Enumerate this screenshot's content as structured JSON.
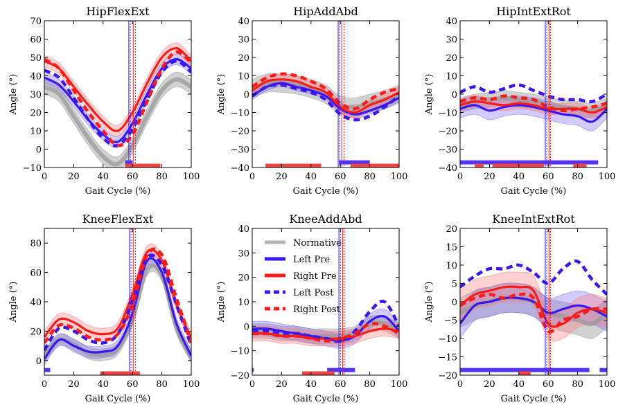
{
  "colors": {
    "normative": "#999999",
    "left": "#3a16f2",
    "right": "#ff1a1a",
    "left_band": "#7a6ef5",
    "right_band": "#ff7a7a",
    "left_bar": "#5533ee",
    "right_bar": "#ee4444"
  },
  "legend": {
    "normative": "Normative",
    "left_pre": "Left Pre",
    "right_pre": "Right Pre",
    "left_post": "Left Post",
    "right_post": "Right Post"
  },
  "chart_data": [
    {
      "type": "line",
      "title": "HipFlexExt",
      "xlabel": "Gait Cycle (%)",
      "ylabel": "Angle (°)",
      "xlim": [
        0,
        100
      ],
      "ylim": [
        -10,
        70
      ],
      "xticks": [
        0,
        20,
        40,
        60,
        80,
        100
      ],
      "yticks": [
        -10,
        0,
        10,
        20,
        30,
        40,
        50,
        60,
        70
      ],
      "x": [
        0,
        10,
        20,
        30,
        40,
        50,
        60,
        70,
        80,
        90,
        100
      ],
      "series": [
        {
          "name": "Normative",
          "values": [
            34,
            30,
            18,
            6,
            -4,
            -8,
            2,
            18,
            32,
            38,
            34
          ],
          "band": 4
        },
        {
          "name": "Left Pre",
          "values": [
            39,
            35,
            26,
            16,
            8,
            4,
            14,
            30,
            44,
            49,
            44
          ],
          "band": 3
        },
        {
          "name": "Right Pre",
          "values": [
            48,
            44,
            34,
            24,
            15,
            10,
            20,
            36,
            50,
            55,
            48
          ],
          "band": 3
        },
        {
          "name": "Left Post",
          "values": [
            43,
            39,
            28,
            16,
            6,
            2,
            11,
            27,
            42,
            48,
            42
          ]
        },
        {
          "name": "Right Post",
          "values": [
            49,
            44,
            32,
            20,
            10,
            2,
            8,
            26,
            44,
            53,
            47
          ]
        }
      ],
      "toe_off": {
        "left_pre": 57.5,
        "right_pre": 60.5,
        "left_post": 58.5,
        "right_post": 62
      },
      "sig_bars": [
        {
          "side": "left",
          "start": 55,
          "end": 60
        },
        {
          "side": "right",
          "start": 55,
          "end": 79
        }
      ]
    },
    {
      "type": "line",
      "title": "HipAddAbd",
      "xlabel": "Gait Cycle (%)",
      "ylabel": "Angle (°)",
      "xlim": [
        0,
        100
      ],
      "ylim": [
        -40,
        40
      ],
      "xticks": [
        0,
        20,
        40,
        60,
        80,
        100
      ],
      "yticks": [
        -40,
        -30,
        -20,
        -10,
        0,
        10,
        20,
        30,
        40
      ],
      "x": [
        0,
        10,
        20,
        30,
        40,
        50,
        60,
        70,
        80,
        90,
        100
      ],
      "series": [
        {
          "name": "Normative",
          "values": [
            3,
            6,
            6,
            5,
            3,
            0,
            -6,
            -7,
            -5,
            -3,
            0
          ],
          "band": 5
        },
        {
          "name": "Left Pre",
          "values": [
            -1,
            4,
            6,
            4,
            2,
            -1,
            -8,
            -11,
            -9,
            -6,
            -2
          ],
          "band": 2
        },
        {
          "name": "Right Pre",
          "values": [
            2,
            7,
            8,
            7,
            4,
            1,
            -7,
            -10,
            -6,
            -3,
            1
          ],
          "band": 3
        },
        {
          "name": "Left Post",
          "values": [
            -1,
            4,
            5,
            3,
            1,
            -3,
            -11,
            -14,
            -12,
            -7,
            -1
          ]
        },
        {
          "name": "Right Post",
          "values": [
            4,
            9,
            11,
            10,
            7,
            3,
            -5,
            -8,
            -3,
            1,
            3
          ]
        }
      ],
      "toe_off": {
        "left_pre": 58.5,
        "right_pre": 61,
        "left_post": 59.5,
        "right_post": 62.5
      },
      "sig_bars": [
        {
          "side": "left",
          "start": 59,
          "end": 80
        },
        {
          "side": "right",
          "start": 9,
          "end": 47
        },
        {
          "side": "right",
          "start": 67,
          "end": 100
        }
      ]
    },
    {
      "type": "line",
      "title": "HipIntExtRot",
      "xlabel": "Gait Cycle (%)",
      "ylabel": "Angle (°)",
      "xlim": [
        0,
        100
      ],
      "ylim": [
        -40,
        40
      ],
      "xticks": [
        0,
        20,
        40,
        60,
        80,
        100
      ],
      "yticks": [
        -40,
        -30,
        -20,
        -10,
        0,
        10,
        20,
        30,
        40
      ],
      "x": [
        0,
        10,
        20,
        30,
        40,
        50,
        60,
        70,
        80,
        90,
        100
      ],
      "series": [
        {
          "name": "Normative",
          "values": [
            -6,
            -4,
            -3,
            -2,
            -3,
            -4,
            -6,
            -7,
            -8,
            -9,
            -6
          ],
          "band": 4
        },
        {
          "name": "Left Pre",
          "values": [
            -8,
            -6,
            -9,
            -7,
            -6,
            -7,
            -9,
            -11,
            -12,
            -15,
            -8
          ],
          "band": 5
        },
        {
          "name": "Right Pre",
          "values": [
            -6,
            -4,
            -5,
            -6,
            -5,
            -6,
            -8,
            -8,
            -8,
            -10,
            -7
          ],
          "band": 3
        },
        {
          "name": "Left Post",
          "values": [
            1,
            4,
            1,
            3,
            5,
            2,
            -1,
            -3,
            -3,
            -4,
            0
          ]
        },
        {
          "name": "Right Post",
          "values": [
            -4,
            -2,
            -3,
            -1,
            -2,
            -3,
            -7,
            -9,
            -8,
            -7,
            -5
          ]
        }
      ],
      "toe_off": {
        "left_pre": 58,
        "right_pre": 60.5,
        "left_post": 59,
        "right_post": 61.5
      },
      "sig_bars": [
        {
          "side": "left",
          "start": 0,
          "end": 94
        },
        {
          "side": "right",
          "start": 10,
          "end": 16
        },
        {
          "side": "right",
          "start": 22,
          "end": 57
        },
        {
          "side": "right",
          "start": 77,
          "end": 86
        }
      ]
    },
    {
      "type": "line",
      "title": "KneeFlexExt",
      "xlabel": "Gait Cycle (%)",
      "ylabel": "Angle (°)",
      "xlim": [
        0,
        100
      ],
      "ylim": [
        -10,
        90
      ],
      "xticks": [
        0,
        20,
        40,
        60,
        80,
        100
      ],
      "yticks": [
        0,
        20,
        40,
        60,
        80
      ],
      "x": [
        0,
        10,
        20,
        30,
        40,
        50,
        60,
        70,
        80,
        90,
        100
      ],
      "series": [
        {
          "name": "Normative",
          "values": [
            3,
            14,
            11,
            5,
            4,
            8,
            28,
            62,
            58,
            22,
            3
          ],
          "band": 4
        },
        {
          "name": "Left Pre",
          "values": [
            1,
            14,
            10,
            6,
            6,
            10,
            32,
            68,
            60,
            25,
            3
          ],
          "band": 4
        },
        {
          "name": "Right Pre",
          "values": [
            16,
            28,
            26,
            20,
            18,
            22,
            45,
            74,
            68,
            38,
            15
          ],
          "band": 4
        },
        {
          "name": "Left Post",
          "values": [
            7,
            22,
            20,
            14,
            12,
            18,
            40,
            70,
            65,
            38,
            10
          ]
        },
        {
          "name": "Right Post",
          "values": [
            12,
            24,
            22,
            16,
            14,
            18,
            38,
            72,
            72,
            42,
            12
          ]
        }
      ],
      "toe_off": {
        "left_pre": 58,
        "right_pre": 60.5,
        "left_post": 59,
        "right_post": 62
      },
      "sig_bars": [
        {
          "side": "left",
          "start": 0,
          "end": 4
        },
        {
          "side": "right",
          "start": 38,
          "end": 65
        }
      ]
    },
    {
      "type": "line",
      "title": "KneeAddAbd",
      "xlabel": "Gait Cycle (%)",
      "ylabel": "Angle (°)",
      "xlim": [
        0,
        100
      ],
      "ylim": [
        -20,
        40
      ],
      "xticks": [
        0,
        20,
        40,
        60,
        80,
        100
      ],
      "yticks": [
        -20,
        -10,
        0,
        10,
        20,
        30,
        40
      ],
      "x": [
        0,
        10,
        20,
        30,
        40,
        50,
        60,
        70,
        80,
        90,
        100
      ],
      "series": [
        {
          "name": "Normative",
          "values": [
            -2,
            -2,
            -3,
            -3,
            -4,
            -4,
            -4,
            -3,
            1,
            1,
            -2
          ],
          "band": 3
        },
        {
          "name": "Left Pre",
          "values": [
            -1,
            -1,
            -2,
            -3,
            -4,
            -5,
            -6,
            -4,
            2,
            4,
            -2
          ],
          "band": 3
        },
        {
          "name": "Right Pre",
          "values": [
            -3,
            -3,
            -4,
            -4,
            -5,
            -5,
            -5,
            -4,
            -2,
            -1,
            -2
          ],
          "band": 3
        },
        {
          "name": "Left Post",
          "values": [
            -2,
            -2,
            -3,
            -3,
            -4,
            -5,
            -6,
            -2,
            6,
            10,
            0
          ]
        },
        {
          "name": "Right Post",
          "values": [
            -3,
            -3,
            -4,
            -4,
            -5,
            -6,
            -5,
            -3,
            1,
            0,
            -3
          ]
        }
      ],
      "toe_off": {
        "left_pre": 59,
        "right_pre": 61.5,
        "left_post": 60,
        "right_post": 62.5
      },
      "sig_bars": [
        {
          "side": "left",
          "start": 0,
          "end": 1
        },
        {
          "side": "left",
          "start": 51,
          "end": 70
        },
        {
          "side": "right",
          "start": 34,
          "end": 56
        }
      ],
      "legend_position": "upper-left"
    },
    {
      "type": "line",
      "title": "KneeIntExtRot",
      "xlabel": "Gait Cycle (%)",
      "ylabel": "Angle (°)",
      "xlim": [
        0,
        100
      ],
      "ylim": [
        -20,
        20
      ],
      "xticks": [
        0,
        20,
        40,
        60,
        80,
        100
      ],
      "yticks": [
        -20,
        -15,
        -10,
        -5,
        0,
        5,
        10,
        15,
        20
      ],
      "x": [
        0,
        10,
        20,
        30,
        40,
        50,
        60,
        70,
        80,
        90,
        100
      ],
      "series": [
        {
          "name": "Normative",
          "values": [
            -3,
            -1,
            0,
            1,
            1,
            0,
            -3,
            -4,
            -5,
            -6,
            -3
          ],
          "band": 4
        },
        {
          "name": "Left Pre",
          "values": [
            -6,
            -1,
            0,
            1,
            1,
            0,
            -3,
            -2,
            -1,
            -2,
            -4
          ],
          "band": 4
        },
        {
          "name": "Right Pre",
          "values": [
            -1,
            2,
            3,
            4,
            4,
            3,
            -6,
            -6,
            -3,
            -2,
            -3
          ],
          "band": 4
        },
        {
          "name": "Left Post",
          "values": [
            4,
            7,
            9,
            9,
            10,
            8,
            5,
            9,
            11,
            6,
            2
          ]
        },
        {
          "name": "Right Post",
          "values": [
            -1,
            1,
            2,
            1,
            2,
            1,
            -8,
            -5,
            -4,
            -2,
            -2
          ]
        }
      ],
      "toe_off": {
        "left_pre": 58,
        "right_pre": 60.5,
        "left_post": 59,
        "right_post": 61.5
      },
      "sig_bars": [
        {
          "side": "left",
          "start": 0,
          "end": 88
        },
        {
          "side": "left",
          "start": 95,
          "end": 100
        },
        {
          "side": "right",
          "start": 40,
          "end": 48
        }
      ]
    }
  ]
}
